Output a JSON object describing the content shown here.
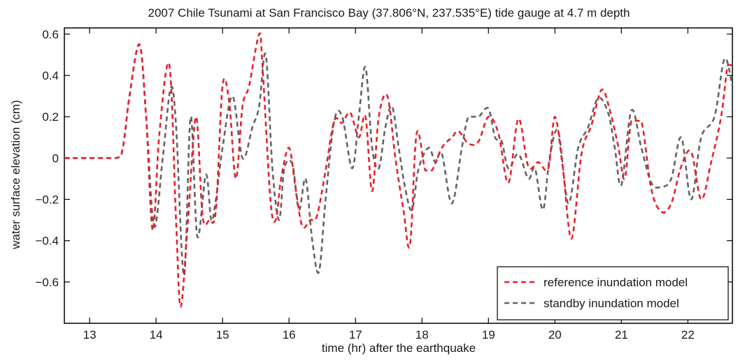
{
  "chart_data": {
    "type": "line",
    "title": "2007 Chile Tsunami at San Francisco Bay  (37.806°N, 237.535°E) tide gauge at 4.7 m depth",
    "xlabel": "time (hr) after the earthquake",
    "ylabel": "water surface elevation (cm)",
    "xlim": [
      12.62,
      22.67
    ],
    "ylim": [
      -0.8,
      0.63
    ],
    "xticks": [
      13,
      14,
      15,
      16,
      17,
      18,
      19,
      20,
      21,
      22
    ],
    "xtick_labels": [
      "13",
      "14",
      "15",
      "16",
      "17",
      "18",
      "19",
      "20",
      "21",
      "22"
    ],
    "yticks": [
      0.6,
      0.4,
      0.2,
      0,
      -0.2,
      -0.4,
      -0.6
    ],
    "ytick_labels": [
      "0.6",
      "0.4",
      "0.2",
      "0",
      "−0.2",
      "−0.4",
      "−0.6"
    ],
    "grid": false,
    "legend_position": "bottom-right",
    "series": [
      {
        "name": "reference inundation model",
        "color": "#e8202a",
        "dash": "dashed",
        "x": [
          12.62,
          13.0,
          13.4,
          13.5,
          13.6,
          13.75,
          13.85,
          13.95,
          14.05,
          14.2,
          14.3,
          14.37,
          14.48,
          14.6,
          14.7,
          14.8,
          14.9,
          15.0,
          15.1,
          15.2,
          15.3,
          15.4,
          15.55,
          15.6,
          15.72,
          15.8,
          15.88,
          16.0,
          16.1,
          16.2,
          16.32,
          16.42,
          16.55,
          16.68,
          16.8,
          16.92,
          17.05,
          17.15,
          17.25,
          17.35,
          17.48,
          17.6,
          17.72,
          17.82,
          17.92,
          18.05,
          18.15,
          18.3,
          18.45,
          18.55,
          18.7,
          18.85,
          19.0,
          19.15,
          19.3,
          19.45,
          19.6,
          19.75,
          19.9,
          20.0,
          20.12,
          20.25,
          20.4,
          20.55,
          20.7,
          20.82,
          20.95,
          21.05,
          21.15,
          21.3,
          21.45,
          21.6,
          21.75,
          21.9,
          22.05,
          22.2,
          22.35,
          22.5,
          22.6,
          22.67
        ],
        "y": [
          0,
          0,
          0,
          0.05,
          0.3,
          0.55,
          0.2,
          -0.35,
          0.12,
          0.45,
          -0.3,
          -0.72,
          -0.3,
          0.2,
          -0.28,
          -0.3,
          -0.25,
          0.35,
          0.27,
          -0.1,
          0.25,
          0.35,
          0.6,
          0.45,
          -0.2,
          -0.3,
          -0.1,
          0.05,
          -0.15,
          -0.33,
          -0.3,
          -0.28,
          -0.06,
          0.18,
          0.17,
          0.22,
          0.1,
          0.2,
          -0.16,
          0.2,
          0.3,
          0.0,
          -0.25,
          -0.42,
          0.12,
          -0.06,
          -0.06,
          0.05,
          0.1,
          0.13,
          0.07,
          0.08,
          0.2,
          0.12,
          -0.12,
          0.19,
          -0.04,
          -0.02,
          -0.05,
          0.2,
          -0.05,
          -0.39,
          0.02,
          0.16,
          0.33,
          0.24,
          0.06,
          -0.1,
          0.18,
          0.18,
          -0.15,
          -0.26,
          -0.22,
          -0.04,
          0.03,
          -0.2,
          -0.02,
          0.2,
          0.45,
          0.45
        ]
      },
      {
        "name": "standby inundation model",
        "color": "#636363",
        "dash": "dashed",
        "x": [
          12.62,
          13.0,
          13.4,
          13.5,
          13.6,
          13.75,
          13.85,
          13.97,
          14.1,
          14.22,
          14.3,
          14.42,
          14.52,
          14.62,
          14.75,
          14.83,
          14.9,
          15.0,
          15.15,
          15.3,
          15.45,
          15.55,
          15.65,
          15.75,
          15.85,
          15.93,
          16.05,
          16.15,
          16.25,
          16.35,
          16.45,
          16.55,
          16.68,
          16.8,
          16.95,
          17.05,
          17.15,
          17.25,
          17.35,
          17.45,
          17.55,
          17.65,
          17.75,
          17.85,
          17.95,
          18.1,
          18.2,
          18.3,
          18.45,
          18.6,
          18.7,
          18.85,
          19.0,
          19.1,
          19.2,
          19.3,
          19.45,
          19.6,
          19.7,
          19.82,
          19.92,
          20.05,
          20.2,
          20.35,
          20.5,
          20.65,
          20.8,
          20.9,
          21.0,
          21.15,
          21.3,
          21.45,
          21.6,
          21.75,
          21.9,
          22.05,
          22.2,
          22.4,
          22.55,
          22.67
        ],
        "y": [
          0,
          0,
          0,
          0.05,
          0.3,
          0.55,
          0.2,
          -0.33,
          0.0,
          0.34,
          0.16,
          -0.57,
          0.2,
          -0.38,
          -0.08,
          -0.3,
          -0.2,
          0.05,
          0.3,
          0.0,
          0.15,
          0.25,
          0.5,
          -0.05,
          -0.3,
          -0.05,
          -0.03,
          -0.25,
          -0.1,
          -0.4,
          -0.55,
          -0.2,
          0.18,
          0.2,
          -0.05,
          0.2,
          0.44,
          0.05,
          -0.05,
          0.15,
          0.25,
          0.05,
          -0.15,
          -0.25,
          -0.05,
          0.05,
          -0.02,
          0.02,
          -0.22,
          0.05,
          0.2,
          0.2,
          0.24,
          0.1,
          0.08,
          -0.05,
          0.02,
          -0.1,
          -0.05,
          -0.25,
          0.0,
          0.13,
          -0.22,
          0.05,
          0.15,
          0.29,
          0.22,
          0.05,
          -0.13,
          0.23,
          0.05,
          -0.12,
          -0.14,
          -0.1,
          0.1,
          -0.2,
          0.1,
          0.2,
          0.48,
          0.35
        ]
      }
    ]
  }
}
